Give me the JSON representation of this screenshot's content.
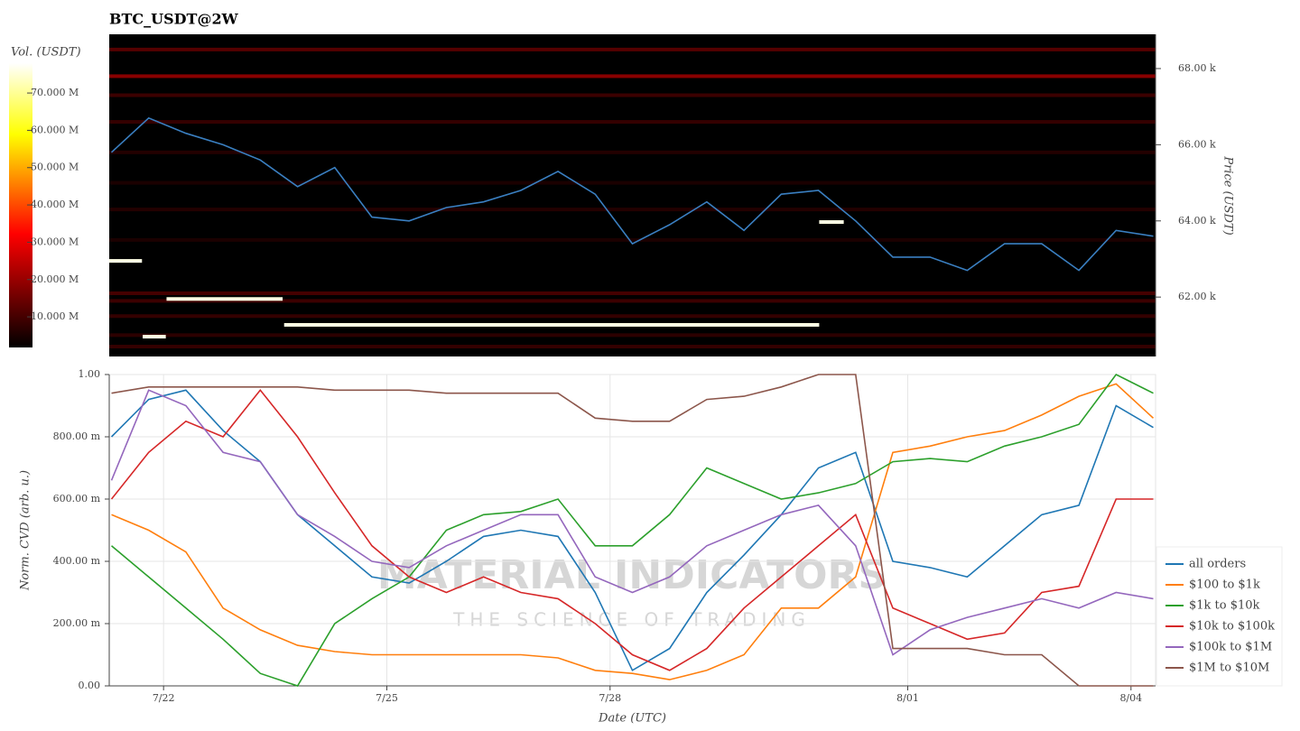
{
  "chart_data": [
    {
      "type": "heatmap",
      "title": "BTC_USDT@2W",
      "y_label": "Price (USDT)",
      "colorbar_label": "Vol. (USDT)",
      "x": [
        21.3,
        21.8,
        22.3,
        22.8,
        23.3,
        23.8,
        24.3,
        24.8,
        25.3,
        25.8,
        26.3,
        26.8,
        27.3,
        27.8,
        28.3,
        28.8,
        29.3,
        29.8,
        30.3,
        30.8,
        31.3,
        31.8,
        32.3,
        32.8,
        33.3,
        33.8,
        34.3,
        34.8,
        35.3
      ],
      "xlim": [
        21.27,
        35.33
      ],
      "line": {
        "color": "#3a7fc1",
        "values": [
          65800,
          66700,
          66300,
          66000,
          65600,
          64900,
          65400,
          64100,
          64000,
          64350,
          64500,
          64800,
          65300,
          64700,
          63400,
          63900,
          64500,
          63750,
          64700,
          64800,
          64000,
          63050,
          63050,
          62700,
          63400,
          63400,
          62700,
          63750,
          63600
        ]
      },
      "ylim": [
        60440,
        68900
      ],
      "yticks": [
        {
          "value": 62000,
          "label": "62.00 k"
        },
        {
          "value": 64000,
          "label": "64.00 k"
        },
        {
          "value": 66000,
          "label": "66.00 k"
        },
        {
          "value": 68000,
          "label": "68.00 k"
        }
      ],
      "clim": [
        1800000,
        78000000
      ],
      "cticks": [
        {
          "value": 10000000,
          "label": "10.000 M"
        },
        {
          "value": 20000000,
          "label": "20.000 M"
        },
        {
          "value": 30000000,
          "label": "30.000 M"
        },
        {
          "value": 40000000,
          "label": "40.000 M"
        },
        {
          "value": 50000000,
          "label": "50.000 M"
        },
        {
          "value": 60000000,
          "label": "60.000 M"
        },
        {
          "value": 70000000,
          "label": "70.000 M"
        }
      ],
      "heatmap": {
        "prices": [
          68500,
          67800,
          67300,
          66600,
          65800,
          65000,
          64300,
          63500,
          62100,
          61900,
          61500,
          61000,
          60700
        ],
        "volumes": [
          12000000,
          18000000,
          9000000,
          8000000,
          6000000,
          5000000,
          6000000,
          5000000,
          10000000,
          9000000,
          8000000,
          7000000,
          8000000
        ]
      },
      "walls": [
        {
          "x0": 21.27,
          "x1": 21.71,
          "price": 62950,
          "volume": 76000000
        },
        {
          "x0": 22.04,
          "x1": 23.6,
          "price": 61950,
          "volume": 76000000
        },
        {
          "x0": 21.72,
          "x1": 22.03,
          "price": 60960,
          "volume": 76000000
        },
        {
          "x0": 23.62,
          "x1": 30.81,
          "price": 61270,
          "volume": 76000000
        },
        {
          "x0": 30.81,
          "x1": 31.14,
          "price": 63970,
          "volume": 76000000
        }
      ]
    },
    {
      "type": "line",
      "x_label": "Date (UTC)",
      "y_label": "Norm. CVD (arb. u.)",
      "x": [
        21.3,
        21.8,
        22.3,
        22.8,
        23.3,
        23.8,
        24.3,
        24.8,
        25.3,
        25.8,
        26.3,
        26.8,
        27.3,
        27.8,
        28.3,
        28.8,
        29.3,
        29.8,
        30.3,
        30.8,
        31.3,
        31.8,
        32.3,
        32.8,
        33.3,
        33.8,
        34.3,
        34.8,
        35.3
      ],
      "xlim": [
        21.27,
        35.33
      ],
      "xticks": [
        {
          "value": 22,
          "label": "7/22"
        },
        {
          "value": 25,
          "label": "7/25"
        },
        {
          "value": 28,
          "label": "7/28"
        },
        {
          "value": 32,
          "label": "8/01"
        },
        {
          "value": 35,
          "label": "8/04"
        }
      ],
      "ylim": [
        0,
        1
      ],
      "yticks": [
        {
          "value": 0,
          "label": "0.00"
        },
        {
          "value": 0.2,
          "label": "200.00 m"
        },
        {
          "value": 0.4,
          "label": "400.00 m"
        },
        {
          "value": 0.6,
          "label": "600.00 m"
        },
        {
          "value": 0.8,
          "label": "800.00 m"
        },
        {
          "value": 1,
          "label": "1.00"
        }
      ],
      "grid": true,
      "legend": "lower right",
      "watermark": {
        "title": "MATERIAL INDICATORS",
        "subtitle": "THE SCIENCE OF TRADING"
      },
      "series": [
        {
          "name": "all orders",
          "color": "#1f77b4",
          "values": [
            0.8,
            0.92,
            0.95,
            0.82,
            0.72,
            0.55,
            0.45,
            0.35,
            0.33,
            0.4,
            0.48,
            0.5,
            0.48,
            0.3,
            0.05,
            0.12,
            0.3,
            0.42,
            0.55,
            0.7,
            0.75,
            0.4,
            0.38,
            0.35,
            0.45,
            0.55,
            0.58,
            0.9,
            0.83
          ]
        },
        {
          "name": "$100 to $1k",
          "color": "#ff7f0e",
          "values": [
            0.55,
            0.5,
            0.43,
            0.25,
            0.18,
            0.13,
            0.11,
            0.1,
            0.1,
            0.1,
            0.1,
            0.1,
            0.09,
            0.05,
            0.04,
            0.02,
            0.05,
            0.1,
            0.25,
            0.25,
            0.35,
            0.75,
            0.77,
            0.8,
            0.82,
            0.87,
            0.93,
            0.97,
            0.86
          ]
        },
        {
          "name": "$1k to $10k",
          "color": "#2ca02c",
          "values": [
            0.45,
            0.35,
            0.25,
            0.15,
            0.04,
            0.0,
            0.2,
            0.28,
            0.35,
            0.5,
            0.55,
            0.56,
            0.6,
            0.45,
            0.45,
            0.55,
            0.7,
            0.65,
            0.6,
            0.62,
            0.65,
            0.72,
            0.73,
            0.72,
            0.77,
            0.8,
            0.84,
            1.0,
            0.94
          ]
        },
        {
          "name": "$10k to $100k",
          "color": "#d62728",
          "values": [
            0.6,
            0.75,
            0.85,
            0.8,
            0.95,
            0.8,
            0.62,
            0.45,
            0.35,
            0.3,
            0.35,
            0.3,
            0.28,
            0.2,
            0.1,
            0.05,
            0.12,
            0.25,
            0.35,
            0.45,
            0.55,
            0.25,
            0.2,
            0.15,
            0.17,
            0.3,
            0.32,
            0.6,
            0.6
          ]
        },
        {
          "name": "$100k to $1M",
          "color": "#9467bd",
          "values": [
            0.66,
            0.95,
            0.9,
            0.75,
            0.72,
            0.55,
            0.48,
            0.4,
            0.38,
            0.45,
            0.5,
            0.55,
            0.55,
            0.35,
            0.3,
            0.35,
            0.45,
            0.5,
            0.55,
            0.58,
            0.45,
            0.1,
            0.18,
            0.22,
            0.25,
            0.28,
            0.25,
            0.3,
            0.28
          ]
        },
        {
          "name": "$1M to $10M",
          "color": "#8c564b",
          "values": [
            0.94,
            0.96,
            0.96,
            0.96,
            0.96,
            0.96,
            0.95,
            0.95,
            0.95,
            0.94,
            0.94,
            0.94,
            0.94,
            0.86,
            0.85,
            0.85,
            0.92,
            0.93,
            0.96,
            1.0,
            1.0,
            0.12,
            0.12,
            0.12,
            0.1,
            0.1,
            0.0,
            0.0,
            0.0
          ]
        }
      ]
    }
  ]
}
